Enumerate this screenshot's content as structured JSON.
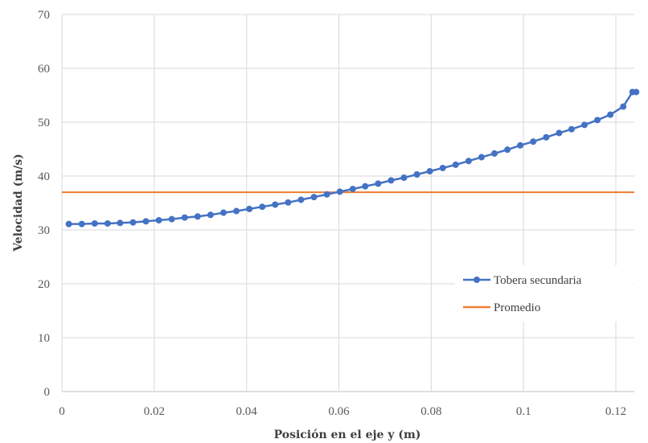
{
  "chart_data": {
    "type": "line",
    "title": "",
    "xlabel": "Posición en el eje y (m)",
    "ylabel": "Velocidad (m/s)",
    "xlim": [
      0,
      0.124
    ],
    "ylim": [
      0,
      70
    ],
    "x_ticks": [
      0,
      0.02,
      0.04,
      0.06,
      0.08,
      0.1,
      0.12
    ],
    "x_tick_labels": [
      "0",
      "0.02",
      "0.04",
      "0.06",
      "0.08",
      "0.1",
      "0.12"
    ],
    "y_ticks": [
      0,
      10,
      20,
      30,
      40,
      50,
      60,
      70
    ],
    "y_tick_labels": [
      "0",
      "10",
      "20",
      "30",
      "40",
      "50",
      "60",
      "70"
    ],
    "grid": true,
    "legend_position": "lower-right",
    "series": [
      {
        "name": "Tobera secundaria",
        "color": "#4472C4",
        "marker": "circle",
        "x": [
          0.0015,
          0.0043,
          0.0071,
          0.0099,
          0.0126,
          0.0154,
          0.0182,
          0.021,
          0.0238,
          0.0266,
          0.0294,
          0.0322,
          0.035,
          0.0378,
          0.0406,
          0.0434,
          0.0462,
          0.049,
          0.0518,
          0.0546,
          0.0574,
          0.0602,
          0.063,
          0.0657,
          0.0685,
          0.0713,
          0.0741,
          0.0769,
          0.0797,
          0.0825,
          0.0853,
          0.0881,
          0.0909,
          0.0937,
          0.0965,
          0.0993,
          0.1021,
          0.1049,
          0.1077,
          0.1104,
          0.1132,
          0.116,
          0.1188,
          0.1216,
          0.1236,
          0.1244
        ],
        "y": [
          31.1,
          31.1,
          31.2,
          31.2,
          31.3,
          31.4,
          31.6,
          31.8,
          32.0,
          32.3,
          32.5,
          32.8,
          33.2,
          33.5,
          33.9,
          34.3,
          34.7,
          35.1,
          35.6,
          36.1,
          36.6,
          37.1,
          37.6,
          38.1,
          38.6,
          39.2,
          39.7,
          40.3,
          40.9,
          41.5,
          42.1,
          42.8,
          43.5,
          44.2,
          44.9,
          45.7,
          46.4,
          47.2,
          48.0,
          48.7,
          49.5,
          50.4,
          51.4,
          52.9,
          55.6,
          55.6
        ]
      },
      {
        "name": "Promedio",
        "color": "#ED7D31",
        "marker": "none",
        "x": [
          0,
          0.124
        ],
        "y": [
          37.0,
          37.0
        ]
      }
    ]
  }
}
